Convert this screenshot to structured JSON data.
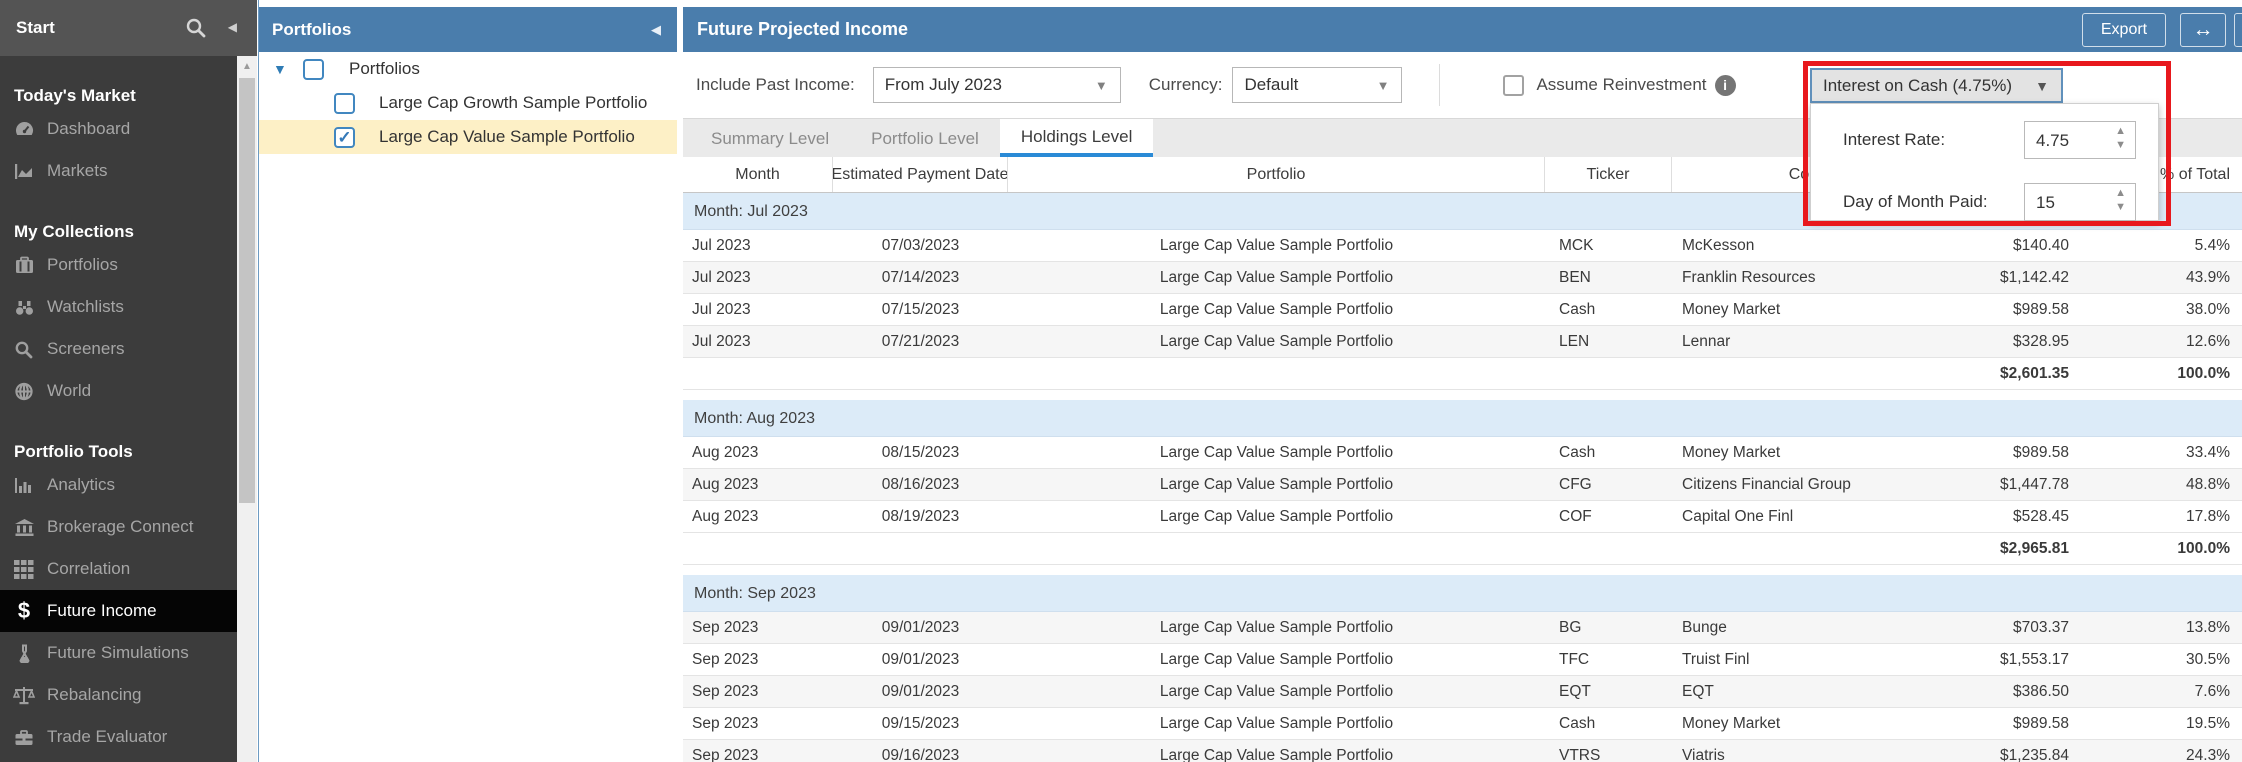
{
  "colors": {
    "accent_blue": "#4a7dac",
    "tab_underline_blue": "#2a8ad6",
    "annotation_red": "#e8181d",
    "selected_row_yellow": "#fdf0c6",
    "group_row_blue": "#dcebf8",
    "sidebar_selected_black": "#050505"
  },
  "sidebar": {
    "title": "Start",
    "header_icons": [
      "search-icon",
      "collapse-arrow-icon"
    ],
    "sections": [
      {
        "label": "Today's Market",
        "items": [
          {
            "icon": "dashboard-icon",
            "label": "Dashboard",
            "selected": false
          },
          {
            "icon": "markets-icon",
            "label": "Markets",
            "selected": false
          }
        ]
      },
      {
        "label": "My Collections",
        "items": [
          {
            "icon": "portfolios-icon",
            "label": "Portfolios",
            "selected": false
          },
          {
            "icon": "watchlists-icon",
            "label": "Watchlists",
            "selected": false
          },
          {
            "icon": "screeners-icon",
            "label": "Screeners",
            "selected": false
          },
          {
            "icon": "world-icon",
            "label": "World",
            "selected": false
          }
        ]
      },
      {
        "label": "Portfolio Tools",
        "items": [
          {
            "icon": "analytics-icon",
            "label": "Analytics",
            "selected": false
          },
          {
            "icon": "brokerage-icon",
            "label": "Brokerage Connect",
            "selected": false
          },
          {
            "icon": "correlation-icon",
            "label": "Correlation",
            "selected": false
          },
          {
            "icon": "dollar-icon",
            "label": "Future Income",
            "selected": true
          },
          {
            "icon": "flask-icon",
            "label": "Future Simulations",
            "selected": false
          },
          {
            "icon": "scales-icon",
            "label": "Rebalancing",
            "selected": false
          },
          {
            "icon": "toolbox-icon",
            "label": "Trade Evaluator",
            "selected": false
          }
        ]
      }
    ]
  },
  "portfolios_panel": {
    "title": "Portfolios",
    "rows": [
      {
        "label": "Portfolios",
        "level": 0,
        "caret": true,
        "checked": false,
        "selected": false
      },
      {
        "label": "Large Cap Growth Sample Portfolio",
        "level": 1,
        "caret": false,
        "checked": false,
        "selected": false
      },
      {
        "label": "Large Cap Value Sample Portfolio",
        "level": 1,
        "caret": false,
        "checked": true,
        "selected": true
      }
    ]
  },
  "main": {
    "title": "Future Projected Income",
    "header_buttons": {
      "export": "Export",
      "resize_icon": "↔"
    },
    "controls": {
      "include_past_income": {
        "label": "Include Past Income:",
        "value": "From July 2023"
      },
      "currency": {
        "label": "Currency:",
        "value": "Default"
      },
      "assume_reinvestment": {
        "label": "Assume Reinvestment",
        "checked": false
      },
      "interest_on_cash": {
        "button_label": "Interest on Cash (4.75%)",
        "interest_rate": {
          "label": "Interest Rate:",
          "value": "4.75"
        },
        "day_of_month_paid": {
          "label": "Day of Month Paid:",
          "value": "15"
        }
      }
    },
    "tabs": [
      {
        "label": "Summary Level",
        "active": false
      },
      {
        "label": "Portfolio Level",
        "active": false
      },
      {
        "label": "Holdings Level",
        "active": true
      }
    ],
    "table": {
      "columns": [
        "Month",
        "Estimated Payment Date",
        "Portfolio",
        "Ticker",
        "Company",
        "",
        "% of Total"
      ],
      "groups": [
        {
          "label": "Month: Jul 2023",
          "rows": [
            {
              "month": "Jul 2023",
              "date": "07/03/2023",
              "portfolio": "Large Cap Value Sample Portfolio",
              "ticker": "MCK",
              "company": "McKesson",
              "amount": "$140.40",
              "pct": "5.4%",
              "shaded": false
            },
            {
              "month": "Jul 2023",
              "date": "07/14/2023",
              "portfolio": "Large Cap Value Sample Portfolio",
              "ticker": "BEN",
              "company": "Franklin Resources",
              "amount": "$1,142.42",
              "pct": "43.9%",
              "shaded": true
            },
            {
              "month": "Jul 2023",
              "date": "07/15/2023",
              "portfolio": "Large Cap Value Sample Portfolio",
              "ticker": "Cash",
              "company": "Money Market",
              "amount": "$989.58",
              "pct": "38.0%",
              "shaded": false
            },
            {
              "month": "Jul 2023",
              "date": "07/21/2023",
              "portfolio": "Large Cap Value Sample Portfolio",
              "ticker": "LEN",
              "company": "Lennar",
              "amount": "$328.95",
              "pct": "12.6%",
              "shaded": true
            }
          ],
          "total": {
            "amount": "$2,601.35",
            "pct": "100.0%"
          }
        },
        {
          "label": "Month: Aug 2023",
          "rows": [
            {
              "month": "Aug 2023",
              "date": "08/15/2023",
              "portfolio": "Large Cap Value Sample Portfolio",
              "ticker": "Cash",
              "company": "Money Market",
              "amount": "$989.58",
              "pct": "33.4%",
              "shaded": false
            },
            {
              "month": "Aug 2023",
              "date": "08/16/2023",
              "portfolio": "Large Cap Value Sample Portfolio",
              "ticker": "CFG",
              "company": "Citizens Financial Group",
              "amount": "$1,447.78",
              "pct": "48.8%",
              "shaded": true
            },
            {
              "month": "Aug 2023",
              "date": "08/19/2023",
              "portfolio": "Large Cap Value Sample Portfolio",
              "ticker": "COF",
              "company": "Capital One Finl",
              "amount": "$528.45",
              "pct": "17.8%",
              "shaded": false
            }
          ],
          "total": {
            "amount": "$2,965.81",
            "pct": "100.0%"
          }
        },
        {
          "label": "Month: Sep 2023",
          "rows": [
            {
              "month": "Sep 2023",
              "date": "09/01/2023",
              "portfolio": "Large Cap Value Sample Portfolio",
              "ticker": "BG",
              "company": "Bunge",
              "amount": "$703.37",
              "pct": "13.8%",
              "shaded": true
            },
            {
              "month": "Sep 2023",
              "date": "09/01/2023",
              "portfolio": "Large Cap Value Sample Portfolio",
              "ticker": "TFC",
              "company": "Truist Finl",
              "amount": "$1,553.17",
              "pct": "30.5%",
              "shaded": false
            },
            {
              "month": "Sep 2023",
              "date": "09/01/2023",
              "portfolio": "Large Cap Value Sample Portfolio",
              "ticker": "EQT",
              "company": "EQT",
              "amount": "$386.50",
              "pct": "7.6%",
              "shaded": true
            },
            {
              "month": "Sep 2023",
              "date": "09/15/2023",
              "portfolio": "Large Cap Value Sample Portfolio",
              "ticker": "Cash",
              "company": "Money Market",
              "amount": "$989.58",
              "pct": "19.5%",
              "shaded": false
            },
            {
              "month": "Sep 2023",
              "date": "09/16/2023",
              "portfolio": "Large Cap Value Sample Portfolio",
              "ticker": "VTRS",
              "company": "Viatris",
              "amount": "$1,235.84",
              "pct": "24.3%",
              "shaded": true
            }
          ],
          "total": null
        }
      ]
    }
  }
}
